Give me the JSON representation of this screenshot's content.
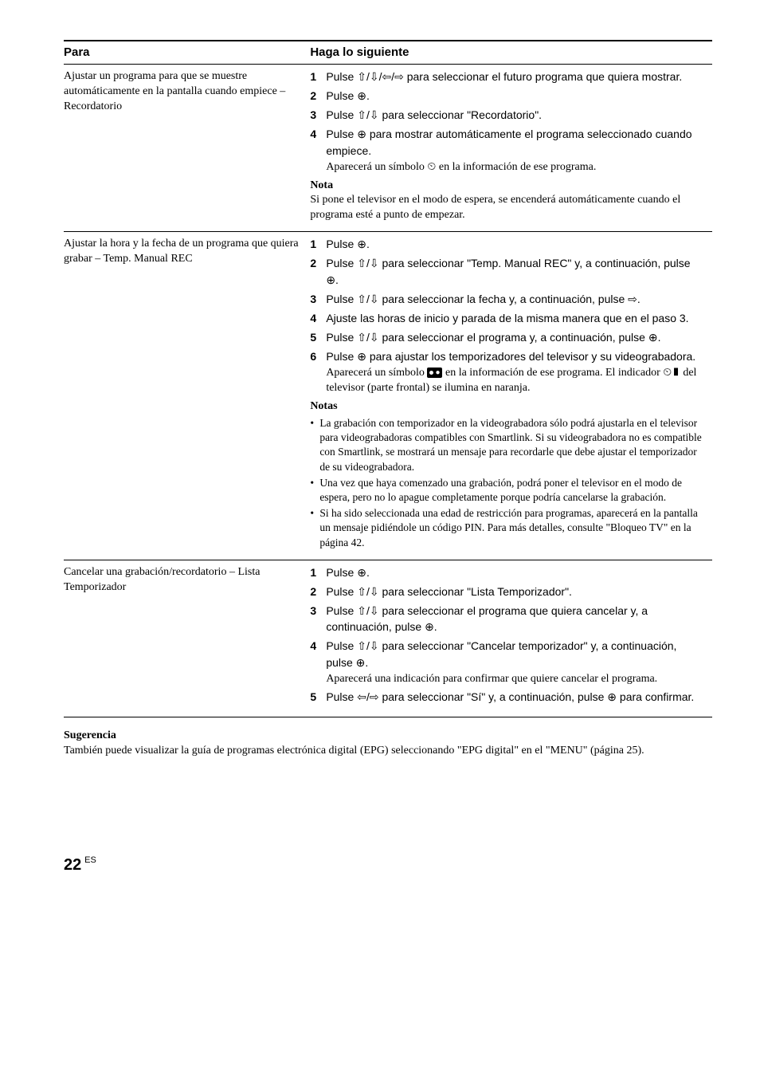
{
  "header": {
    "para": "Para",
    "haga": "Haga lo siguiente"
  },
  "row1": {
    "left": "Ajustar un programa para que se muestre automáticamente en la pantalla cuando empiece – Recordatorio",
    "s1": "Pulse ⇧/⇩/⇦/⇨ para seleccionar el futuro programa que quiera mostrar.",
    "s2": "Pulse ⊕.",
    "s3": "Pulse ⇧/⇩ para seleccionar \"Recordatorio\".",
    "s4": "Pulse ⊕ para mostrar automáticamente el programa seleccionado cuando empiece.",
    "s4n": "Aparecerá un símbolo ⏲ en la información de ese programa.",
    "nota_h": "Nota",
    "nota": "Si pone el televisor en el modo de espera, se encenderá automáticamente cuando el programa esté a punto de empezar."
  },
  "row2": {
    "left": "Ajustar la hora y la fecha de un programa que quiera grabar – Temp. Manual REC",
    "s1": "Pulse ⊕.",
    "s2": "Pulse ⇧/⇩ para seleccionar \"Temp. Manual REC\" y, a continuación, pulse ⊕.",
    "s3": "Pulse ⇧/⇩ para seleccionar la fecha y, a continuación, pulse ⇨.",
    "s4": "Ajuste las horas de inicio y parada de la misma manera que en el paso 3.",
    "s5": "Pulse ⇧/⇩ para seleccionar el programa y, a continuación, pulse ⊕.",
    "s6": "Pulse ⊕ para ajustar los temporizadores del televisor y su videograbadora.",
    "s6n_a": "Aparecerá un símbolo ",
    "s6n_b": " en la información de ese programa. El indicador ",
    "s6n_c": " del televisor (parte frontal) se ilumina en naranja.",
    "notas_h": "Notas",
    "b1": "La grabación con temporizador en la videograbadora sólo podrá ajustarla en el televisor para videograbadoras compatibles con Smartlink. Si su videograbadora no es compatible con Smartlink, se mostrará un mensaje para recordarle que debe ajustar el temporizador de su videograbadora.",
    "b2": "Una vez que haya comenzado una grabación, podrá poner el televisor en el modo de espera, pero no lo apague completamente porque podría cancelarse la grabación.",
    "b3": "Si ha sido seleccionada una edad de restricción para programas, aparecerá en la pantalla un mensaje pidiéndole un código PIN. Para más detalles, consulte \"Bloqueo TV\" en la página 42."
  },
  "row3": {
    "left": "Cancelar una grabación/recordatorio – Lista Temporizador",
    "s1": "Pulse ⊕.",
    "s2": "Pulse ⇧/⇩ para seleccionar \"Lista Temporizador\".",
    "s3": "Pulse ⇧/⇩ para seleccionar el programa que quiera cancelar y, a continuación, pulse ⊕.",
    "s4": "Pulse ⇧/⇩ para seleccionar \"Cancelar temporizador\" y, a continuación, pulse ⊕.",
    "s4n": "Aparecerá una indicación para confirmar que quiere cancelar el programa.",
    "s5": "Pulse ⇦/⇨ para seleccionar \"Sí\" y, a continuación, pulse ⊕ para confirmar."
  },
  "sug_h": "Sugerencia",
  "sug": "También puede visualizar la guía de programas electrónica digital (EPG) seleccionando \"EPG digital\" en el \"MENU\" (página 25).",
  "footer": {
    "page": "22",
    "es": "ES"
  }
}
